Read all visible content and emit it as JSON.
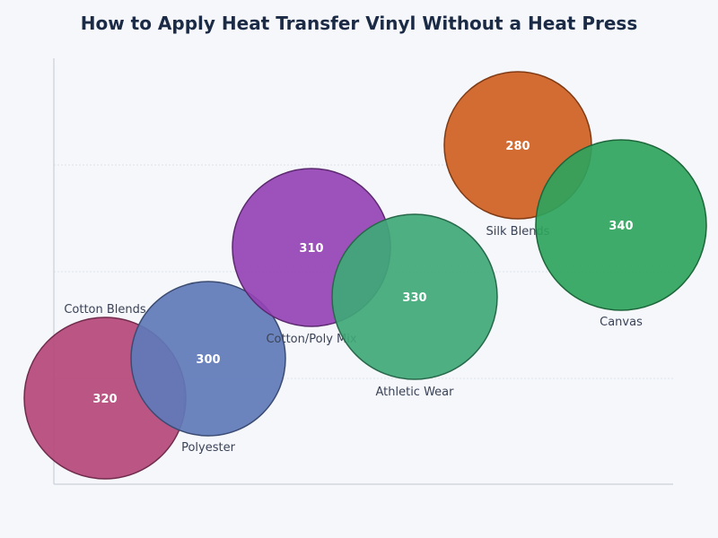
{
  "chart_data": {
    "type": "scatter",
    "title": "How to Apply Heat Transfer Vinyl Without a Heat Press",
    "xlabel": "",
    "ylabel": "",
    "grid": true,
    "points": [
      {
        "label": "Cotton Blends",
        "value": 320,
        "color": "#b4477a"
      },
      {
        "label": "Polyester",
        "value": 300,
        "color": "#5f79b8"
      },
      {
        "label": "Cotton/Poly Mix",
        "value": 310,
        "color": "#9542b4"
      },
      {
        "label": "Athletic Wear",
        "value": 330,
        "color": "#3fa877"
      },
      {
        "label": "Silk Blends",
        "value": 280,
        "color": "#cf5f22"
      },
      {
        "label": "Canvas",
        "value": 340,
        "color": "#2ea45d"
      }
    ]
  }
}
